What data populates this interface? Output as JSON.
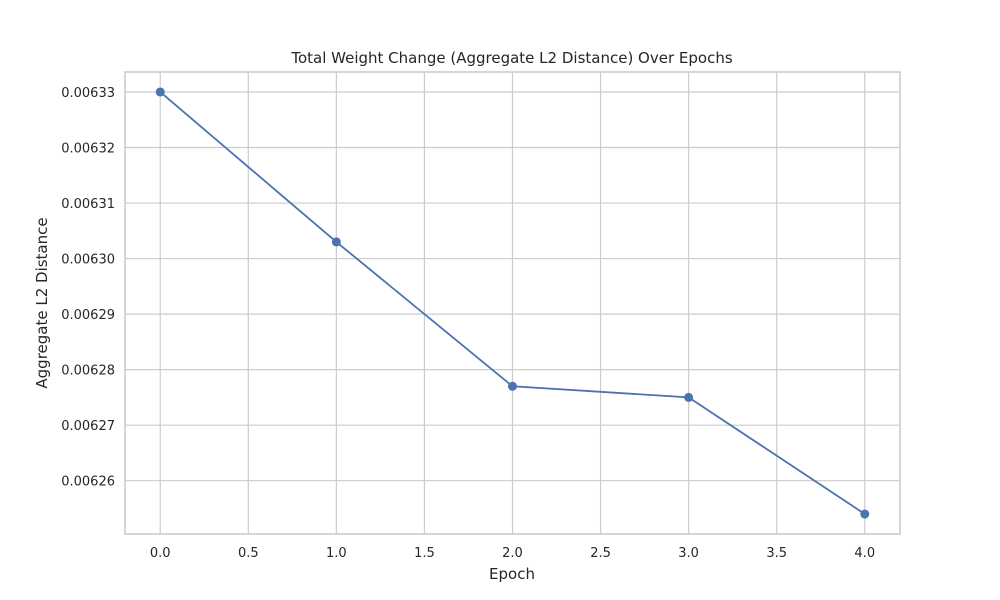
{
  "chart_data": {
    "type": "line",
    "title": "Total Weight Change (Aggregate L2 Distance) Over Epochs",
    "xlabel": "Epoch",
    "ylabel": "Aggregate L2 Distance",
    "x": [
      0,
      1,
      2,
      3,
      4
    ],
    "series": [
      {
        "values": [
          0.00633,
          0.006303,
          0.006277,
          0.006275,
          0.006254
        ]
      }
    ],
    "xlim": [
      -0.2,
      4.2
    ],
    "ylim": [
      0.0062504,
      0.0063336
    ],
    "x_ticks": [
      0.0,
      0.5,
      1.0,
      1.5,
      2.0,
      2.5,
      3.0,
      3.5,
      4.0
    ],
    "x_tick_labels": [
      "0.0",
      "0.5",
      "1.0",
      "1.5",
      "2.0",
      "2.5",
      "3.0",
      "3.5",
      "4.0"
    ],
    "y_ticks": [
      0.00626,
      0.00627,
      0.00628,
      0.00629,
      0.0063,
      0.00631,
      0.00632,
      0.00633
    ],
    "y_tick_labels": [
      "0.00626",
      "0.00627",
      "0.00628",
      "0.00629",
      "0.00630",
      "0.00631",
      "0.00632",
      "0.00633"
    ],
    "grid": true,
    "colors": {
      "line": "#4c72b0",
      "grid": "#cccccc",
      "text": "#262626"
    }
  }
}
